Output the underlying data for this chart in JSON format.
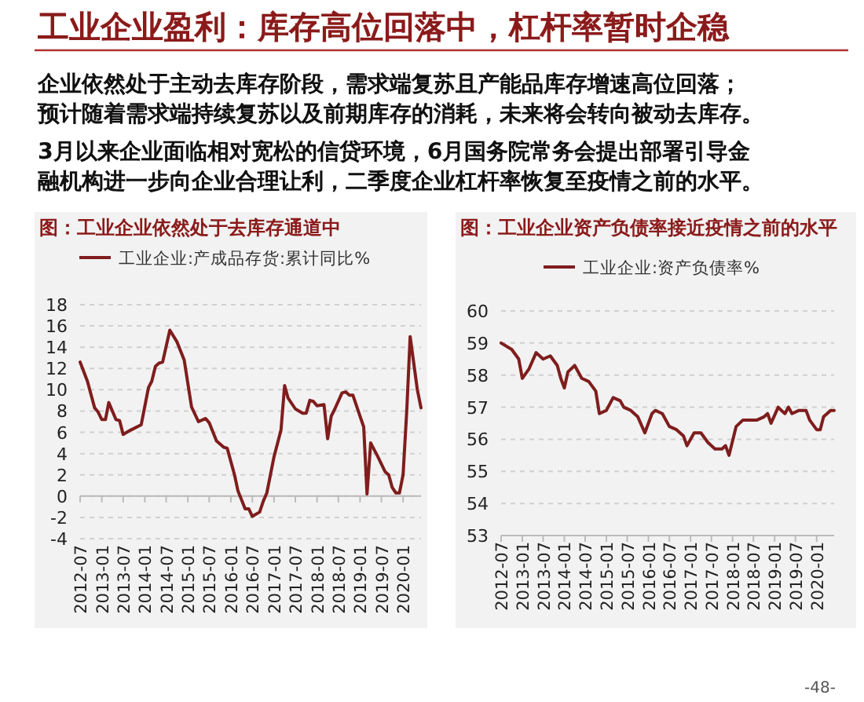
{
  "chart_data": [
    {
      "type": "other",
      "title": "工业企业盈利：库存高位回落中，杠杆率暂时企稳",
      "annotations": [
        "企业依然处于主动去库存阶段，需求端复苏且产能品库存增速高位回落；",
        "预计随着需求端持续复苏以及前期库存的消耗，未来将会转向被动去库存。",
        "3月以来企业面临相对宽松的信贷环境，6月国务院常务会提出部署引导金",
        "融机构进一步向企业合理让利，二季度企业杠杆率恢复至疫情之前的水平。",
        "-48-"
      ]
    },
    {
      "type": "line",
      "title": "图：工业企业依然处于去库存通道中",
      "legend": "top",
      "grid": "y",
      "x": [
        "2012-07",
        "2012-09",
        "2012-11",
        "2012-12",
        "2013-01",
        "2013-02",
        "2013-03",
        "2013-05",
        "2013-06",
        "2013-07",
        "2013-09",
        "2013-12",
        "2014-02",
        "2014-03",
        "2014-04",
        "2014-05",
        "2014-06",
        "2014-08",
        "2014-10",
        "2014-12",
        "2015-02",
        "2015-04",
        "2015-06",
        "2015-07",
        "2015-09",
        "2015-11",
        "2015-12",
        "2016-02",
        "2016-03",
        "2016-05",
        "2016-06",
        "2016-07",
        "2016-09",
        "2016-10",
        "2016-11",
        "2017-01",
        "2017-03",
        "2017-04",
        "2017-05",
        "2017-07",
        "2017-09",
        "2017-10",
        "2017-11",
        "2017-12",
        "2018-01",
        "2018-03",
        "2018-04",
        "2018-05",
        "2018-06",
        "2018-08",
        "2018-09",
        "2018-10",
        "2018-11",
        "2019-01",
        "2019-02",
        "2019-03",
        "2019-04",
        "2019-06",
        "2019-08",
        "2019-09",
        "2019-10",
        "2019-11",
        "2019-12",
        "2020-01",
        "2020-02",
        "2020-03",
        "2020-05",
        "2020-06"
      ],
      "series": [
        {
          "name": "工业企业:产成品存货:累计同比%",
          "color": "#7f1d1d",
          "values": [
            12.6,
            10.8,
            8.3,
            7.9,
            7.2,
            7.2,
            8.8,
            7.2,
            7.1,
            5.8,
            6.2,
            6.7,
            10.2,
            10.8,
            12.2,
            12.5,
            12.6,
            15.6,
            14.5,
            12.8,
            8.4,
            7.0,
            7.3,
            6.9,
            5.2,
            4.6,
            4.5,
            2.0,
            0.5,
            -1.2,
            -1.2,
            -1.9,
            -1.5,
            -0.5,
            0.3,
            3.7,
            6.2,
            10.4,
            9.2,
            8.2,
            7.8,
            7.8,
            9.0,
            8.9,
            8.5,
            8.6,
            5.4,
            7.5,
            8.2,
            9.7,
            9.8,
            9.5,
            9.5,
            7.5,
            6.5,
            0.2,
            5.0,
            3.7,
            2.3,
            2.0,
            0.8,
            0.3,
            0.3,
            2.0,
            8.0,
            15.0,
            10.0,
            8.3
          ]
        }
      ],
      "xlim": [
        "2012-07",
        "2020-06"
      ],
      "xticks": [
        "2012-07",
        "2013-01",
        "2013-07",
        "2014-01",
        "2014-07",
        "2015-01",
        "2015-07",
        "2016-01",
        "2016-07",
        "2017-01",
        "2017-07",
        "2018-01",
        "2018-07",
        "2019-01",
        "2019-07",
        "2020-01"
      ],
      "ylim": [
        -4,
        18
      ],
      "yticks": [
        -4,
        -2,
        0,
        2,
        4,
        6,
        8,
        10,
        12,
        14,
        16,
        18
      ]
    },
    {
      "type": "line",
      "title": "图：工业企业资产负债率接近疫情之前的水平",
      "legend": "top",
      "grid": "y",
      "x": [
        "2012-07",
        "2012-10",
        "2012-12",
        "2013-01",
        "2013-03",
        "2013-05",
        "2013-07",
        "2013-09",
        "2013-11",
        "2013-12",
        "2014-01",
        "2014-02",
        "2014-04",
        "2014-06",
        "2014-08",
        "2014-10",
        "2014-11",
        "2015-01",
        "2015-03",
        "2015-05",
        "2015-06",
        "2015-08",
        "2015-10",
        "2015-12",
        "2016-02",
        "2016-03",
        "2016-05",
        "2016-07",
        "2016-09",
        "2016-11",
        "2016-12",
        "2017-02",
        "2017-04",
        "2017-06",
        "2017-08",
        "2017-10",
        "2017-11",
        "2017-12",
        "2018-02",
        "2018-04",
        "2018-06",
        "2018-08",
        "2018-10",
        "2018-11",
        "2018-12",
        "2019-02",
        "2019-03",
        "2019-04",
        "2019-05",
        "2019-06",
        "2019-08",
        "2019-10",
        "2019-11",
        "2020-01",
        "2020-02",
        "2020-03",
        "2020-05",
        "2020-06"
      ],
      "series": [
        {
          "name": "工业企业:资产负债率%",
          "color": "#7f1d1d",
          "values": [
            59.0,
            58.8,
            58.5,
            57.9,
            58.2,
            58.7,
            58.5,
            58.6,
            58.3,
            57.9,
            57.6,
            58.1,
            58.3,
            57.9,
            57.8,
            57.5,
            56.8,
            56.9,
            57.3,
            57.2,
            57.0,
            56.9,
            56.7,
            56.2,
            56.8,
            56.9,
            56.8,
            56.4,
            56.3,
            56.1,
            55.8,
            56.2,
            56.2,
            55.9,
            55.7,
            55.7,
            55.8,
            55.5,
            56.4,
            56.6,
            56.6,
            56.6,
            56.7,
            56.8,
            56.5,
            57.0,
            56.9,
            56.8,
            57.0,
            56.8,
            56.9,
            56.9,
            56.6,
            56.3,
            56.3,
            56.7,
            56.9,
            56.9
          ]
        }
      ],
      "xlim": [
        "2012-07",
        "2020-06"
      ],
      "xticks": [
        "2012-07",
        "2013-01",
        "2013-07",
        "2014-01",
        "2014-07",
        "2015-01",
        "2015-07",
        "2016-01",
        "2016-07",
        "2017-01",
        "2017-07",
        "2018-01",
        "2018-07",
        "2019-01",
        "2019-07",
        "2020-01"
      ],
      "ylim": [
        53,
        60
      ],
      "yticks": [
        53,
        54,
        55,
        56,
        57,
        58,
        59,
        60
      ]
    }
  ]
}
